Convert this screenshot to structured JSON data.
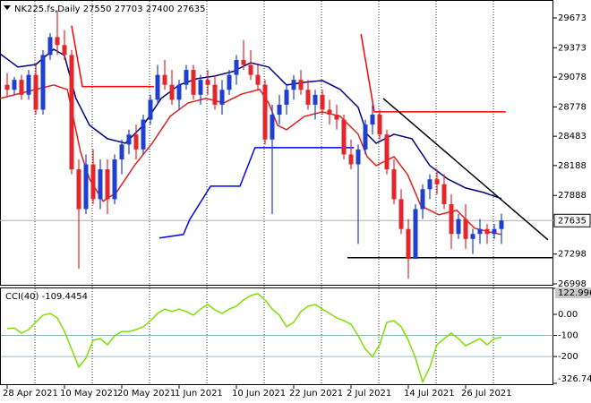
{
  "chart_data": [
    {
      "type": "candlestick",
      "title": "NK225.fs,Daily",
      "categories": [
        "28 Apr 2021",
        null,
        null,
        null,
        null,
        null,
        null,
        null,
        "10 May 2021",
        null,
        null,
        null,
        null,
        null,
        null,
        null,
        "20 May 2021",
        null,
        null,
        null,
        null,
        null,
        null,
        null,
        "1 Jun 2021",
        null,
        null,
        null,
        null,
        null,
        null,
        null,
        "10 Jun 2021",
        null,
        null,
        null,
        null,
        null,
        null,
        null,
        "22 Jun 2021",
        null,
        null,
        null,
        null,
        null,
        null,
        null,
        "2 Jul 2021",
        null,
        null,
        null,
        null,
        null,
        null,
        null,
        "14 Jul 2021",
        null,
        null,
        null,
        null,
        null,
        null,
        null,
        "26 Jul 2021",
        null,
        null,
        null,
        null,
        null
      ],
      "open": [
        29000,
        28950,
        29050,
        28900,
        29100,
        28750,
        29300,
        29480,
        29400,
        29300,
        28150,
        27750,
        28200,
        27850,
        28150,
        27850,
        28250,
        28400,
        28500,
        28350,
        28650,
        28850,
        29100,
        29000,
        28850,
        29000,
        29150,
        28900,
        29050,
        29000,
        28800,
        28950,
        29100,
        29250,
        29200,
        29100,
        29000,
        28450,
        28700,
        28800,
        28950,
        29050,
        28950,
        28800,
        28900,
        28750,
        28700,
        28650,
        28300,
        28200,
        28350,
        28600,
        28700,
        28500,
        28150,
        27850,
        27550,
        27250,
        27750,
        27950,
        28050,
        28000,
        27800,
        27500,
        27650,
        27450,
        27500,
        27550,
        27500,
        27550
      ],
      "high": [
        29120,
        29080,
        29100,
        29150,
        29200,
        29350,
        29520,
        29750,
        29550,
        29350,
        28250,
        28300,
        28350,
        28250,
        28250,
        28300,
        28450,
        28550,
        28600,
        28700,
        28900,
        29200,
        29250,
        29150,
        29050,
        29200,
        29200,
        29100,
        29150,
        29100,
        29050,
        29150,
        29300,
        29450,
        29350,
        29200,
        29050,
        28800,
        28900,
        29000,
        29100,
        29150,
        29050,
        28950,
        28950,
        28850,
        28800,
        28700,
        28450,
        28400,
        28650,
        28800,
        28750,
        28550,
        28250,
        27950,
        27650,
        27800,
        28000,
        28100,
        28150,
        28100,
        27900,
        27700,
        27800,
        27550,
        27650,
        27600,
        27600,
        27703
      ],
      "low": [
        28880,
        28900,
        28850,
        28850,
        28700,
        28700,
        29250,
        29300,
        29250,
        28100,
        27150,
        27700,
        27800,
        27750,
        27700,
        27800,
        28100,
        28300,
        28250,
        28300,
        28600,
        28800,
        28950,
        28800,
        28750,
        28950,
        28850,
        28800,
        28900,
        28750,
        28700,
        28900,
        29000,
        29150,
        29050,
        28950,
        28400,
        27700,
        28600,
        28700,
        28850,
        28900,
        28750,
        28650,
        28700,
        28600,
        28550,
        28250,
        28150,
        27400,
        28300,
        28500,
        28450,
        28100,
        27800,
        27500,
        27050,
        27250,
        27650,
        27850,
        27900,
        27750,
        27350,
        27450,
        27350,
        27300,
        27400,
        27400,
        27450,
        27400
      ],
      "close": [
        28950,
        29050,
        28900,
        29100,
        28750,
        29300,
        29480,
        29400,
        29300,
        28150,
        27750,
        28200,
        27850,
        28150,
        27850,
        28250,
        28400,
        28500,
        28350,
        28650,
        28850,
        29100,
        29000,
        28850,
        29000,
        29150,
        28900,
        29050,
        29000,
        28800,
        28950,
        29100,
        29250,
        29200,
        29100,
        29000,
        28450,
        28700,
        28800,
        28950,
        29050,
        28950,
        28800,
        28900,
        28750,
        28700,
        28650,
        28300,
        28200,
        28350,
        28600,
        28700,
        28500,
        28150,
        27850,
        27550,
        27250,
        27750,
        27950,
        28050,
        28000,
        27800,
        27500,
        27650,
        27450,
        27500,
        27550,
        27500,
        27550,
        27635
      ],
      "up_color": "#1f3fd0",
      "down_color": "#e2262b",
      "xlim": [
        -1,
        76.25
      ],
      "ylim": [
        26989,
        29835
      ],
      "yticks": [
        29673,
        29373,
        29078,
        28778,
        28483,
        28188,
        27888,
        27298,
        26998
      ],
      "overlays": [
        {
          "color": "#000080",
          "x": [
            -1,
            1.5,
            4,
            6.5,
            8,
            9.6,
            11.5,
            14,
            16.5,
            19,
            21.5,
            24,
            26.5,
            29,
            31.5,
            34,
            36.5,
            39,
            41.5,
            44,
            46.5,
            49,
            50.25,
            51.5,
            54,
            56.5,
            59,
            61.5,
            64,
            66.5,
            69
          ],
          "values": [
            29313,
            29178,
            29205,
            29358,
            29295,
            28863,
            28593,
            28458,
            28413,
            28593,
            28863,
            28998,
            29061,
            29088,
            29133,
            29223,
            29178,
            28998,
            29025,
            29043,
            28953,
            28773,
            28503,
            28413,
            28503,
            28458,
            28188,
            28053,
            27963,
            27918,
            27855
          ]
        },
        {
          "color": "#e02020",
          "x": [
            -1,
            1.5,
            4,
            6.5,
            8.4,
            10.25,
            11.5,
            13.4,
            15.25,
            17.75,
            20.25,
            22.75,
            25.25,
            27.75,
            30.25,
            32.75,
            35.25,
            36.5,
            37.75,
            39,
            41.5,
            44,
            46.5,
            49,
            50.25,
            51.5,
            54,
            55.9,
            57.75,
            60.25,
            62.75,
            65.25,
            67.75,
            69
          ],
          "values": [
            28863,
            28908,
            28953,
            28998,
            28953,
            28323,
            28053,
            27828,
            27918,
            28188,
            28413,
            28683,
            28818,
            28863,
            28818,
            28908,
            28953,
            28818,
            28593,
            28548,
            28683,
            28728,
            28683,
            28503,
            28278,
            28188,
            28278,
            28098,
            27783,
            27693,
            27738,
            27558,
            27513,
            27495
          ]
        },
        {
          "color": "#ff0000",
          "x": [
            9,
            10.5,
            20.5,
            null,
            49.4,
            51.25,
            69.6
          ],
          "values": [
            29595,
            28983,
            28983,
            null,
            29511,
            28728,
            28728
          ]
        },
        {
          "color": "#0000ff",
          "x": [
            21.25,
            24.6,
            25.5,
            28.4,
            32.5,
            34.6,
            48.4
          ],
          "values": [
            27459,
            27495,
            27648,
            27981,
            27981,
            28368,
            28368
          ]
        },
        {
          "color": "#000000",
          "x": [
            52.5,
            75.5,
            null,
            47.5,
            76.1
          ],
          "values": [
            28863,
            27441,
            null,
            27261,
            27261
          ]
        }
      ]
    },
    {
      "type": "line",
      "title": "CCI(40)",
      "color": "#7ee000",
      "values": [
        -68,
        -64,
        -89,
        -72,
        -38,
        -4,
        4,
        -17,
        -81,
        -165,
        -250,
        -208,
        -123,
        -115,
        -144,
        -102,
        -81,
        -81,
        -72,
        -59,
        -30,
        4,
        25,
        13,
        25,
        13,
        -4,
        25,
        47,
        21,
        4,
        25,
        38,
        68,
        89,
        98,
        68,
        25,
        -4,
        -59,
        -38,
        13,
        38,
        47,
        25,
        4,
        -17,
        -30,
        -47,
        -102,
        -165,
        -200,
        -144,
        -38,
        -30,
        -59,
        -123,
        -208,
        -320,
        -250,
        -144,
        -115,
        -89,
        -115,
        -149,
        -132,
        -115,
        -144,
        -115,
        -109.4454
      ],
      "ylim": [
        -326.744,
        122.9967
      ],
      "yticks": [
        122.9967,
        {
          "value": 0,
          "label": "0.00"
        },
        -100,
        -200,
        -326.744
      ],
      "levels": [
        -100,
        -200
      ]
    }
  ]
}
